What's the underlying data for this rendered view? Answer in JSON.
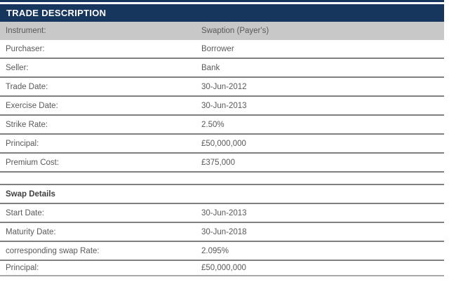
{
  "table": {
    "title": "TRADE DESCRIPTION",
    "rows": [
      {
        "label": "Instrument:",
        "value": "Swaption (Payer's)",
        "style": "highlight"
      },
      {
        "label": "Purchaser:",
        "value": "Borrower",
        "style": "normal"
      },
      {
        "label": "Seller:",
        "value": "Bank",
        "style": "normal"
      },
      {
        "label": "Trade Date:",
        "value": "30-Jun-2012",
        "style": "normal"
      },
      {
        "label": "Exercise Date:",
        "value": "30-Jun-2013",
        "style": "normal"
      },
      {
        "label": "Strike Rate:",
        "value": "2.50%",
        "style": "normal"
      },
      {
        "label": "Principal:",
        "value": "£50,000,000",
        "style": "normal"
      },
      {
        "label": "Premium Cost:",
        "value": "£375,000",
        "style": "normal"
      },
      {
        "label": "",
        "value": "",
        "style": "spacer"
      },
      {
        "label": "Swap Details",
        "value": "",
        "style": "section"
      },
      {
        "label": "Start Date:",
        "value": "30-Jun-2013",
        "style": "normal"
      },
      {
        "label": "Maturity Date:",
        "value": "30-Jun-2018",
        "style": "normal"
      },
      {
        "label": "corresponding swap Rate:",
        "value": "2.095%",
        "style": "normal"
      },
      {
        "label": "Principal:",
        "value": "£50,000,000",
        "style": "normal"
      }
    ]
  },
  "colors": {
    "header_bg": "#17365d",
    "header_text": "#ffffff",
    "highlight_row_bg": "#c8c8c8",
    "row_border": "#7f7f7f",
    "body_text": "#595959",
    "section_text": "#404040"
  }
}
